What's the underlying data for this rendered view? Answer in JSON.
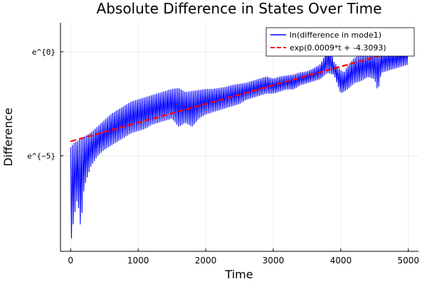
{
  "chart_data": {
    "type": "line",
    "title": "Absolute Difference in States Over Time",
    "xlabel": "Time",
    "ylabel": "Difference",
    "xlim": [
      -150,
      5150
    ],
    "ylim": [
      -9.6,
      1.4
    ],
    "x_ticks": [
      0,
      1000,
      2000,
      3000,
      4000,
      5000
    ],
    "x_tick_labels": [
      "0",
      "1000",
      "2000",
      "3000",
      "4000",
      "5000"
    ],
    "y_ticks": [
      0,
      -5
    ],
    "y_tick_labels": [
      "e^{0}",
      "e^{−5}"
    ],
    "grid": true,
    "legend_position": "top-right",
    "series": [
      {
        "name": "ln(difference in mode1)",
        "color": "#0000ff",
        "style": "solid",
        "upper_envelope": [
          [
            0,
            -4.6
          ],
          [
            50,
            -4.4
          ],
          [
            100,
            -4.3
          ],
          [
            200,
            -4.1
          ],
          [
            300,
            -3.9
          ],
          [
            400,
            -3.6
          ],
          [
            500,
            -3.3
          ],
          [
            600,
            -3.0
          ],
          [
            700,
            -2.8
          ],
          [
            800,
            -2.6
          ],
          [
            900,
            -2.4
          ],
          [
            1000,
            -2.3
          ],
          [
            1100,
            -2.2
          ],
          [
            1200,
            -2.1
          ],
          [
            1300,
            -2.0
          ],
          [
            1400,
            -1.9
          ],
          [
            1500,
            -1.8
          ],
          [
            1600,
            -1.75
          ],
          [
            1700,
            -1.95
          ],
          [
            1800,
            -1.9
          ],
          [
            1900,
            -1.85
          ],
          [
            2000,
            -1.8
          ],
          [
            2100,
            -1.8
          ],
          [
            2200,
            -1.75
          ],
          [
            2300,
            -1.7
          ],
          [
            2400,
            -1.6
          ],
          [
            2500,
            -1.55
          ],
          [
            2600,
            -1.5
          ],
          [
            2700,
            -1.4
          ],
          [
            2800,
            -1.3
          ],
          [
            2900,
            -1.2
          ],
          [
            3000,
            -1.3
          ],
          [
            3100,
            -1.2
          ],
          [
            3200,
            -1.15
          ],
          [
            3300,
            -1.1
          ],
          [
            3400,
            -1.0
          ],
          [
            3500,
            -0.95
          ],
          [
            3600,
            -0.8
          ],
          [
            3700,
            -0.6
          ],
          [
            3760,
            -0.2
          ],
          [
            3800,
            0.3
          ],
          [
            3850,
            0.1
          ],
          [
            3900,
            -0.5
          ],
          [
            4000,
            -0.9
          ],
          [
            4050,
            -1.0
          ],
          [
            4100,
            -0.7
          ],
          [
            4200,
            -0.3
          ],
          [
            4300,
            -0.15
          ],
          [
            4400,
            -0.1
          ],
          [
            4500,
            -0.05
          ],
          [
            4600,
            0.0
          ],
          [
            4700,
            0.1
          ],
          [
            4800,
            0.1
          ],
          [
            4900,
            0.2
          ],
          [
            4950,
            0.3
          ],
          [
            5000,
            0.2
          ]
        ],
        "lower_envelope": [
          [
            0,
            -9.3
          ],
          [
            50,
            -8.0
          ],
          [
            100,
            -7.0
          ],
          [
            150,
            -8.5
          ],
          [
            200,
            -6.5
          ],
          [
            300,
            -5.5
          ],
          [
            400,
            -5.0
          ],
          [
            500,
            -4.7
          ],
          [
            600,
            -4.5
          ],
          [
            700,
            -4.3
          ],
          [
            800,
            -4.1
          ],
          [
            900,
            -3.9
          ],
          [
            1000,
            -3.8
          ],
          [
            1100,
            -3.7
          ],
          [
            1200,
            -3.5
          ],
          [
            1300,
            -3.4
          ],
          [
            1400,
            -3.3
          ],
          [
            1500,
            -3.2
          ],
          [
            1600,
            -3.6
          ],
          [
            1700,
            -3.4
          ],
          [
            1800,
            -3.6
          ],
          [
            1900,
            -3.2
          ],
          [
            2000,
            -3.0
          ],
          [
            2100,
            -2.9
          ],
          [
            2200,
            -2.8
          ],
          [
            2300,
            -2.7
          ],
          [
            2400,
            -2.6
          ],
          [
            2500,
            -2.5
          ],
          [
            2600,
            -2.3
          ],
          [
            2700,
            -2.2
          ],
          [
            2800,
            -2.1
          ],
          [
            2900,
            -2.0
          ],
          [
            3000,
            -2.0
          ],
          [
            3100,
            -1.9
          ],
          [
            3200,
            -1.8
          ],
          [
            3300,
            -1.8
          ],
          [
            3400,
            -1.6
          ],
          [
            3500,
            -1.5
          ],
          [
            3600,
            -1.4
          ],
          [
            3700,
            -1.3
          ],
          [
            3800,
            -1.0
          ],
          [
            3900,
            -1.1
          ],
          [
            4000,
            -2.0
          ],
          [
            4100,
            -1.8
          ],
          [
            4200,
            -1.5
          ],
          [
            4300,
            -1.4
          ],
          [
            4400,
            -1.2
          ],
          [
            4500,
            -1.3
          ],
          [
            4550,
            -1.9
          ],
          [
            4600,
            -1.0
          ],
          [
            4700,
            -0.9
          ],
          [
            4800,
            -0.8
          ],
          [
            4900,
            -0.7
          ],
          [
            5000,
            -0.6
          ]
        ]
      },
      {
        "name": "exp(0.0009*t + -4.3093)",
        "color": "#ff0000",
        "style": "dashed",
        "slope": 0.0009,
        "intercept": -4.3093,
        "x_range": [
          0,
          5000
        ]
      }
    ]
  }
}
